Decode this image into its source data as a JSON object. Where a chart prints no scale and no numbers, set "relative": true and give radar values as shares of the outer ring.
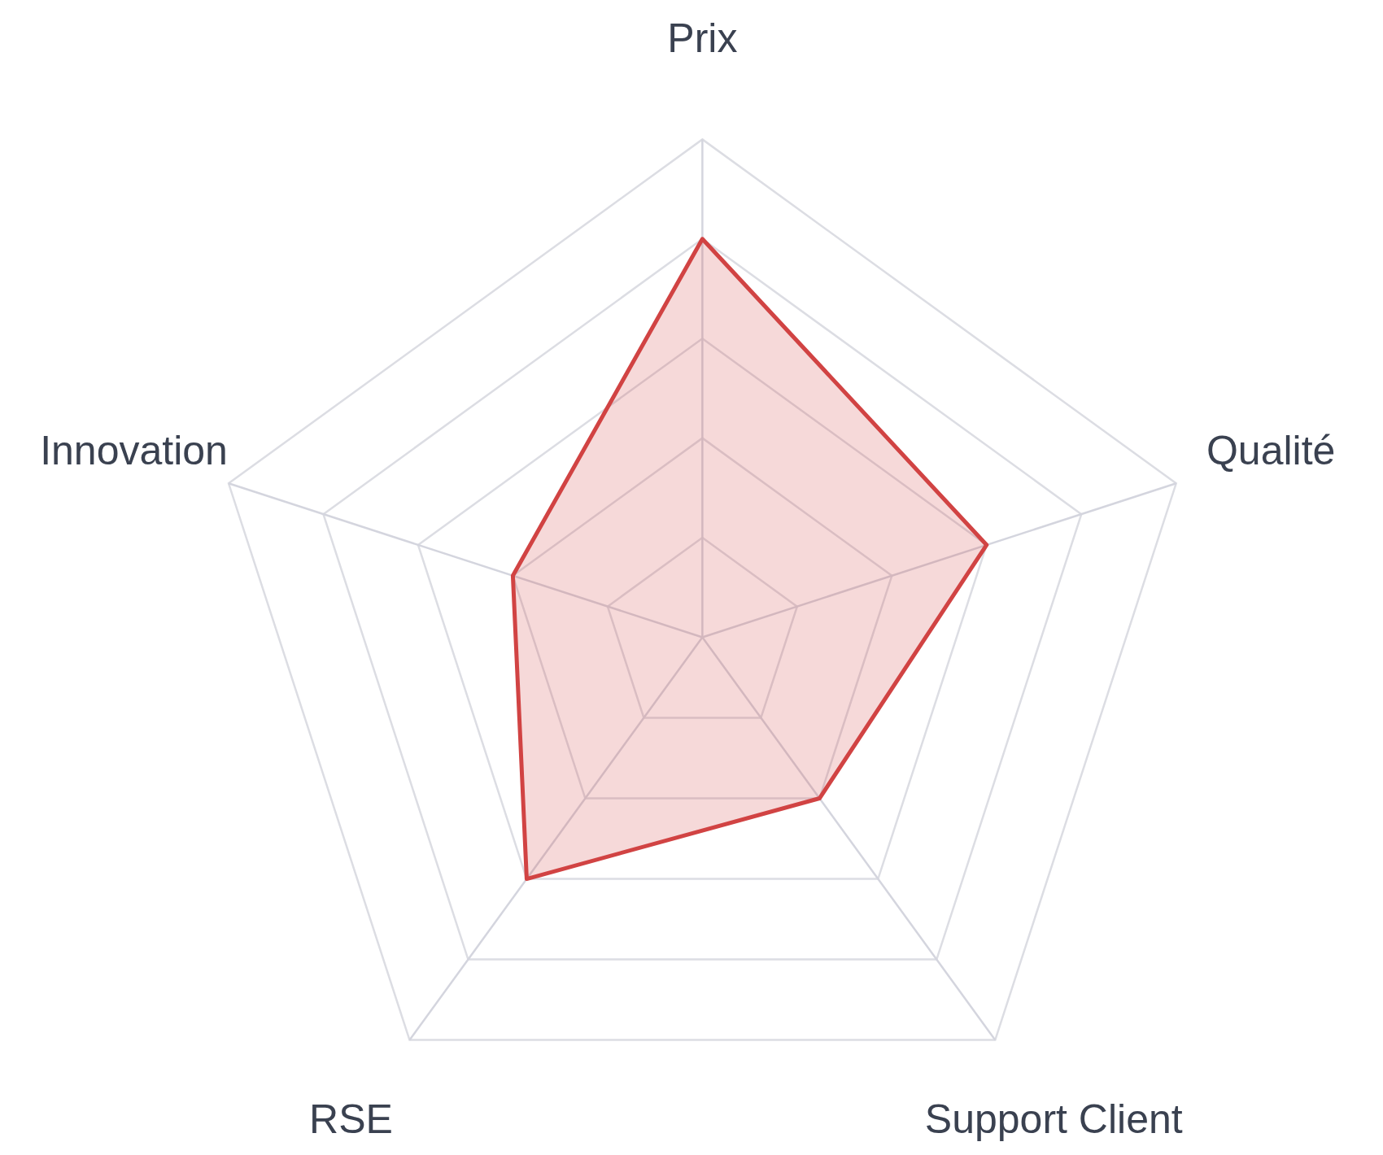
{
  "chart_data": {
    "type": "radar",
    "relative": true,
    "grid": true,
    "categories": [
      "Prix",
      "Qualité",
      "Support Client",
      "RSE",
      "Innovation"
    ],
    "series": [
      {
        "color": "#d14343",
        "values": [
          0.8,
          0.6,
          0.4,
          0.6,
          0.4
        ]
      }
    ]
  }
}
